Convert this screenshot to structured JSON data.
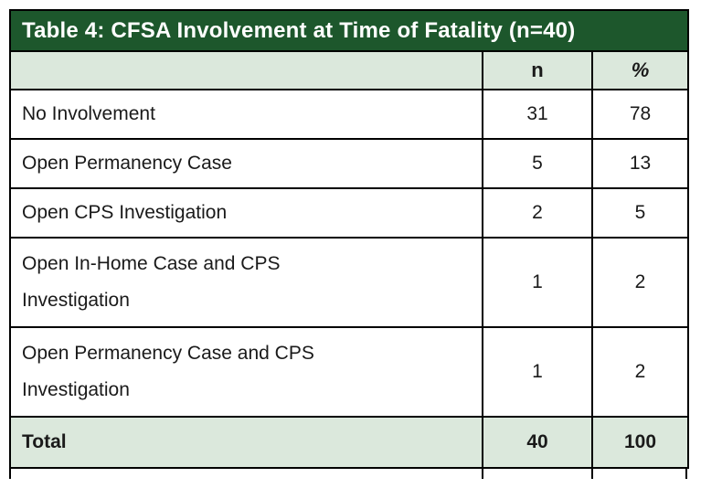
{
  "colors": {
    "title_bg": "#1d572c",
    "title_text": "#ffffff",
    "subheader_bg": "#dbe8dc",
    "total_bg": "#dbe8dc",
    "border": "#000000",
    "body_text": "#1a1a1a"
  },
  "table": {
    "title": "Table 4: CFSA Involvement at Time of Fatality (n=40)",
    "columns": {
      "label": "",
      "n": "n",
      "pct": "%"
    },
    "rows": [
      {
        "label": "No Involvement",
        "n": "31",
        "pct": "78"
      },
      {
        "label": "Open Permanency Case",
        "n": "5",
        "pct": "13"
      },
      {
        "label": "Open CPS Investigation",
        "n": "2",
        "pct": "5"
      },
      {
        "label": "Open In-Home Case and CPS\nInvestigation",
        "n": "1",
        "pct": "2"
      },
      {
        "label": "Open Permanency Case and CPS\nInvestigation",
        "n": "1",
        "pct": "2"
      }
    ],
    "total": {
      "label": "Total",
      "n": "40",
      "pct": "100"
    }
  }
}
